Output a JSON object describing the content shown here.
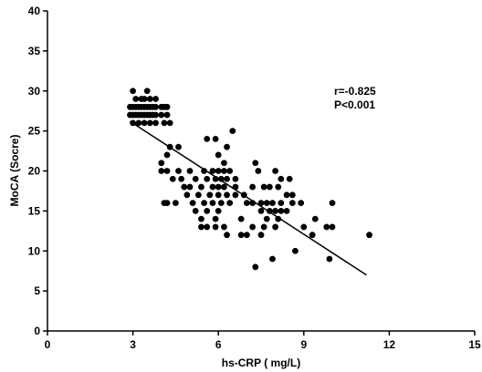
{
  "chart_data": {
    "type": "scatter",
    "title": "",
    "xlabel": "hs-CRP ( mg/L)",
    "ylabel": "MoCA (Socre)",
    "xlim": [
      0,
      15
    ],
    "ylim": [
      0,
      40
    ],
    "x_ticks": [
      "0",
      "3",
      "6",
      "9",
      "12",
      "15"
    ],
    "y_ticks": [
      "0",
      "5",
      "10",
      "15",
      "20",
      "25",
      "30",
      "35",
      "40"
    ],
    "grid": false,
    "point_color": "#000000",
    "annotations": [
      "r=-0.825",
      "P<0.001"
    ],
    "regression_line": {
      "x": [
        2.9,
        11.2
      ],
      "y": [
        26.2,
        7.0
      ]
    },
    "points": [
      [
        3.0,
        30
      ],
      [
        3.5,
        30
      ],
      [
        3.1,
        29
      ],
      [
        3.3,
        29
      ],
      [
        3.4,
        29
      ],
      [
        3.6,
        29
      ],
      [
        3.8,
        29
      ],
      [
        2.9,
        28
      ],
      [
        3.0,
        28
      ],
      [
        3.1,
        28
      ],
      [
        3.2,
        28
      ],
      [
        3.3,
        28
      ],
      [
        3.4,
        28
      ],
      [
        3.5,
        28
      ],
      [
        3.6,
        28
      ],
      [
        3.7,
        28
      ],
      [
        3.8,
        28
      ],
      [
        4.0,
        28
      ],
      [
        4.1,
        28
      ],
      [
        4.2,
        28
      ],
      [
        2.9,
        27
      ],
      [
        3.0,
        27
      ],
      [
        3.1,
        27
      ],
      [
        3.2,
        27
      ],
      [
        3.3,
        27
      ],
      [
        3.4,
        27
      ],
      [
        3.5,
        27
      ],
      [
        3.6,
        27
      ],
      [
        3.7,
        27
      ],
      [
        3.8,
        27
      ],
      [
        4.0,
        27
      ],
      [
        4.2,
        27
      ],
      [
        3.0,
        26
      ],
      [
        3.2,
        26
      ],
      [
        3.4,
        26
      ],
      [
        3.6,
        26
      ],
      [
        3.8,
        26
      ],
      [
        4.1,
        26
      ],
      [
        4.3,
        26
      ],
      [
        4.3,
        23
      ],
      [
        4.6,
        23
      ],
      [
        4.2,
        22
      ],
      [
        4.0,
        21
      ],
      [
        4.0,
        20
      ],
      [
        4.2,
        20
      ],
      [
        4.6,
        20
      ],
      [
        5.0,
        20
      ],
      [
        5.5,
        20
      ],
      [
        5.8,
        20
      ],
      [
        6.0,
        20
      ],
      [
        6.2,
        20
      ],
      [
        6.4,
        20
      ],
      [
        5.6,
        24
      ],
      [
        5.9,
        24
      ],
      [
        6.5,
        25
      ],
      [
        6.3,
        23
      ],
      [
        6.0,
        22
      ],
      [
        6.2,
        21
      ],
      [
        4.4,
        19
      ],
      [
        4.7,
        19
      ],
      [
        5.2,
        19
      ],
      [
        5.6,
        19
      ],
      [
        5.9,
        19
      ],
      [
        6.1,
        19
      ],
      [
        6.3,
        19
      ],
      [
        6.6,
        19
      ],
      [
        4.8,
        18
      ],
      [
        5.0,
        18
      ],
      [
        5.4,
        18
      ],
      [
        5.8,
        18
      ],
      [
        6.0,
        18
      ],
      [
        6.2,
        18
      ],
      [
        6.6,
        18
      ],
      [
        7.2,
        18
      ],
      [
        4.9,
        17
      ],
      [
        5.3,
        17
      ],
      [
        5.7,
        17
      ],
      [
        6.0,
        17
      ],
      [
        6.3,
        17
      ],
      [
        6.6,
        17
      ],
      [
        6.9,
        17
      ],
      [
        4.1,
        16
      ],
      [
        4.2,
        16
      ],
      [
        4.5,
        16
      ],
      [
        5.1,
        16
      ],
      [
        5.5,
        16
      ],
      [
        5.8,
        16
      ],
      [
        6.1,
        16
      ],
      [
        6.4,
        16
      ],
      [
        7.0,
        16
      ],
      [
        5.2,
        15
      ],
      [
        5.6,
        15
      ],
      [
        6.0,
        15
      ],
      [
        5.4,
        14
      ],
      [
        5.9,
        14
      ],
      [
        6.8,
        14
      ],
      [
        5.4,
        13
      ],
      [
        5.6,
        13
      ],
      [
        5.9,
        13
      ],
      [
        6.2,
        13
      ],
      [
        6.3,
        12
      ],
      [
        7.3,
        21
      ],
      [
        7.4,
        20
      ],
      [
        8.0,
        20
      ],
      [
        8.2,
        19
      ],
      [
        8.5,
        19
      ],
      [
        7.6,
        18
      ],
      [
        7.8,
        18
      ],
      [
        8.1,
        18
      ],
      [
        8.4,
        17
      ],
      [
        8.6,
        17
      ],
      [
        7.2,
        16
      ],
      [
        7.5,
        16
      ],
      [
        7.7,
        16
      ],
      [
        7.9,
        16
      ],
      [
        8.2,
        16
      ],
      [
        8.6,
        16
      ],
      [
        8.9,
        16
      ],
      [
        10.0,
        16
      ],
      [
        7.5,
        15
      ],
      [
        7.8,
        15
      ],
      [
        8.0,
        15
      ],
      [
        8.2,
        15
      ],
      [
        8.4,
        15
      ],
      [
        7.7,
        14
      ],
      [
        8.1,
        14
      ],
      [
        9.4,
        14
      ],
      [
        9.0,
        13
      ],
      [
        7.2,
        13
      ],
      [
        7.6,
        13
      ],
      [
        8.0,
        13
      ],
      [
        9.8,
        13
      ],
      [
        10.0,
        13
      ],
      [
        7.0,
        12
      ],
      [
        7.5,
        12
      ],
      [
        9.3,
        12
      ],
      [
        11.3,
        12
      ],
      [
        6.8,
        12
      ],
      [
        8.7,
        10
      ],
      [
        7.9,
        9
      ],
      [
        9.9,
        9
      ],
      [
        7.3,
        8
      ]
    ]
  }
}
